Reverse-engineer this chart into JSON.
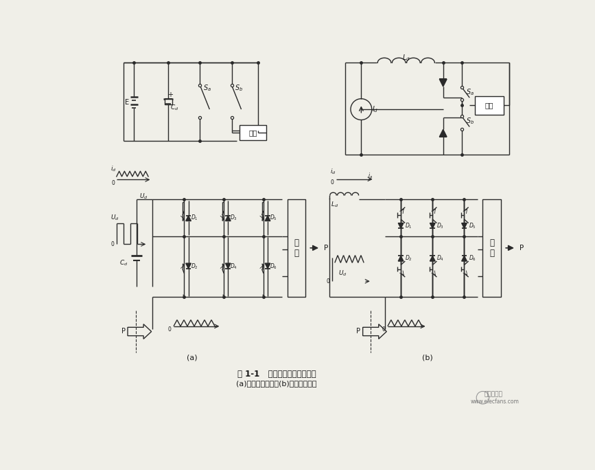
{
  "title_line1": "图 1-1   电压型与电流型逆变器",
  "title_line2": "(a)电压型逆变器；(b)电流型逆变器",
  "label_a": "(a)",
  "label_b": "(b)",
  "label_fujia_top_left": "负载",
  "label_fujia_top_right": "负载",
  "label_jiaoliu_left": "交\n流",
  "label_jiaoliu_right": "交\n流",
  "bg_color": "#f0efe8",
  "line_color": "#2a2a2a",
  "text_color": "#1a1a1a",
  "watermark": "电子发烧友",
  "watermark_url": "www.elecfans.com"
}
